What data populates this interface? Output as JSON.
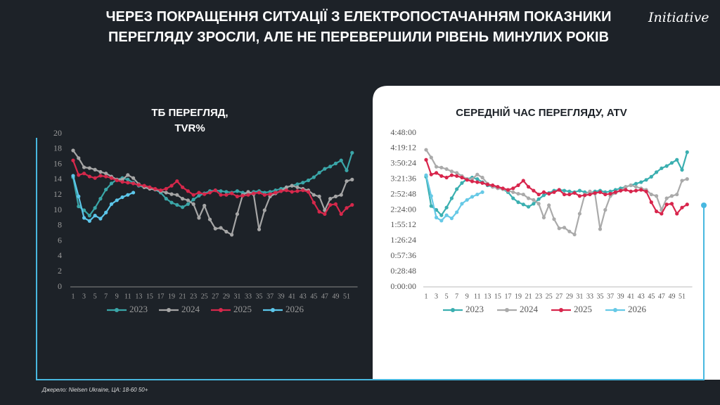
{
  "slide": {
    "title": "ЧЕРЕЗ ПОКРАЩЕННЯ СИТУАЦІЇ З ЕЛЕКТРОПОСТАЧАННЯМ ПОКАЗНИКИ ПЕРЕГЛЯДУ ЗРОСЛИ, АЛЕ НЕ ПЕРЕВЕРШИЛИ РІВЕНЬ МИНУЛИХ РОКІВ",
    "logo": "Initiative",
    "source": "Джерело: Nielsen Ukraine, ЦА: 18-60 50+"
  },
  "chart_data": [
    {
      "type": "line",
      "title": "ТБ ПЕРЕГЛЯД, TVR%",
      "categories": [
        1,
        null,
        3,
        null,
        5,
        null,
        7,
        null,
        9,
        null,
        11,
        null,
        13,
        null,
        15,
        null,
        17,
        null,
        19,
        null,
        21,
        null,
        23,
        null,
        25,
        null,
        27,
        null,
        29,
        null,
        31,
        null,
        33,
        null,
        35,
        null,
        37,
        null,
        39,
        null,
        41,
        null,
        43,
        null,
        45,
        null,
        47,
        null,
        49,
        null,
        51,
        null
      ],
      "ylim": [
        0,
        20
      ],
      "yticks": [
        0,
        2,
        4,
        6,
        8,
        10,
        12,
        14,
        16,
        18,
        20
      ],
      "series": [
        {
          "name": "2023",
          "color": "#3aa6a8",
          "values": [
            14.3,
            10.5,
            10,
            9.3,
            10.3,
            11.5,
            12.7,
            13.5,
            14.0,
            14.2,
            14.0,
            13.6,
            13.2,
            13.0,
            13.0,
            12.7,
            12.3,
            11.5,
            11.0,
            10.7,
            10.4,
            10.8,
            11.4,
            11.9,
            12.2,
            12.5,
            12.6,
            12.5,
            12.4,
            12.3,
            12.5,
            12.3,
            12.2,
            12.4,
            12.5,
            12.3,
            12.4,
            12.6,
            12.8,
            13.0,
            13.2,
            13.4,
            13.6,
            13.9,
            14.3,
            14.9,
            15.4,
            15.7,
            16.1,
            16.5,
            15.2,
            17.5
          ]
        },
        {
          "name": "2024",
          "color": "#a6a6a6",
          "values": [
            17.8,
            16.8,
            15.6,
            15.5,
            15.3,
            15.0,
            14.8,
            14.4,
            14.0,
            14.0,
            14.6,
            14.2,
            13.4,
            13.0,
            12.8,
            12.7,
            12.5,
            12.3,
            12.1,
            12.0,
            11.5,
            11.3,
            10.8,
            9.0,
            10.6,
            8.8,
            7.6,
            7.7,
            7.2,
            6.8,
            9.5,
            12.0,
            12.4,
            12.1,
            7.5,
            10.0,
            11.8,
            12.2,
            12.5,
            13.0,
            13.2,
            13.0,
            12.8,
            12.6,
            12.0,
            11.8,
            10.0,
            11.5,
            11.8,
            12.0,
            13.8,
            14.0
          ]
        },
        {
          "name": "2025",
          "color": "#d6284b",
          "values": [
            16.5,
            14.6,
            14.8,
            14.4,
            14.2,
            14.5,
            14.4,
            14.2,
            13.9,
            13.7,
            13.6,
            13.5,
            13.3,
            13.2,
            13.0,
            12.8,
            12.6,
            12.8,
            13.2,
            13.8,
            13.0,
            12.5,
            12.0,
            12.3,
            12.1,
            12.3,
            12.6,
            12.0,
            12.0,
            12.2,
            11.8,
            11.9,
            12.0,
            12.2,
            12.3,
            12.0,
            12.1,
            12.3,
            12.5,
            12.6,
            12.4,
            12.5,
            12.6,
            12.4,
            11.0,
            9.8,
            9.5,
            10.7,
            10.8,
            9.5,
            10.3,
            10.7
          ]
        },
        {
          "name": "2026",
          "color": "#5cc6ea",
          "values": [
            14.5,
            11.8,
            9.0,
            8.6,
            9.3,
            8.9,
            9.7,
            10.8,
            11.3,
            11.7,
            12.0,
            12.3,
            null,
            null,
            null,
            null,
            null,
            null,
            null,
            null,
            null,
            null,
            null,
            null,
            null,
            null,
            null,
            null,
            null,
            null,
            null,
            null,
            null,
            null,
            null,
            null,
            null,
            null,
            null,
            null,
            null,
            null,
            null,
            null,
            null,
            null,
            null,
            null,
            null,
            null,
            null,
            null
          ]
        }
      ]
    },
    {
      "type": "line",
      "title": "СЕРЕДНІЙ ЧАС ПЕРЕГЛЯДУ, ATV",
      "categories": [
        1,
        null,
        3,
        null,
        5,
        null,
        7,
        null,
        9,
        null,
        11,
        null,
        13,
        null,
        15,
        null,
        17,
        null,
        19,
        null,
        21,
        null,
        23,
        null,
        25,
        null,
        27,
        null,
        29,
        null,
        31,
        null,
        33,
        null,
        35,
        null,
        37,
        null,
        39,
        null,
        41,
        null,
        43,
        null,
        45,
        null,
        47,
        null,
        49,
        null,
        51,
        null
      ],
      "ylim": [
        0,
        17280
      ],
      "yticks": [
        {
          "value": 0,
          "label": "0:00:00"
        },
        {
          "value": 1728,
          "label": "0:28:48"
        },
        {
          "value": 3456,
          "label": "0:57:36"
        },
        {
          "value": 5184,
          "label": "1:26:24"
        },
        {
          "value": 6912,
          "label": "1:55:12"
        },
        {
          "value": 8640,
          "label": "2:24:00"
        },
        {
          "value": 10368,
          "label": "2:52:48"
        },
        {
          "value": 12096,
          "label": "3:21:36"
        },
        {
          "value": 13824,
          "label": "3:50:24"
        },
        {
          "value": 15552,
          "label": "4:19:12"
        },
        {
          "value": 17280,
          "label": "4:48:00"
        }
      ],
      "series": [
        {
          "name": "2023",
          "color": "#3aafb0",
          "values": [
            12360,
            9070,
            8640,
            8040,
            8900,
            9940,
            10970,
            11660,
            12100,
            12270,
            12100,
            11750,
            11400,
            11230,
            11230,
            10970,
            10630,
            9940,
            9500,
            9250,
            8990,
            9330,
            9850,
            10280,
            10540,
            10800,
            10890,
            10800,
            10710,
            10630,
            10800,
            10630,
            10540,
            10710,
            10800,
            10630,
            10710,
            10890,
            11060,
            11230,
            11400,
            11580,
            11750,
            12010,
            12360,
            12870,
            13310,
            13560,
            13910,
            14260,
            13130,
            15120
          ]
        },
        {
          "name": "2024",
          "color": "#aaaaaa",
          "values": [
            15380,
            14520,
            13480,
            13390,
            13220,
            12960,
            12790,
            12440,
            12100,
            12100,
            12610,
            12270,
            11580,
            11230,
            11060,
            10970,
            10800,
            10630,
            10450,
            10370,
            9940,
            9760,
            9330,
            7780,
            9160,
            7600,
            6570,
            6650,
            6220,
            5880,
            8210,
            10370,
            10710,
            10450,
            6480,
            8640,
            10200,
            10540,
            10800,
            11230,
            11400,
            11230,
            11060,
            10890,
            10370,
            10200,
            8640,
            9940,
            10200,
            10370,
            11920,
            12100
          ]
        },
        {
          "name": "2025",
          "color": "#d8254c",
          "values": [
            14260,
            12610,
            12790,
            12440,
            12270,
            12530,
            12440,
            12270,
            12010,
            11840,
            11750,
            11660,
            11490,
            11400,
            11230,
            11060,
            10890,
            11060,
            11400,
            11920,
            11230,
            10800,
            10370,
            10630,
            10450,
            10630,
            10890,
            10370,
            10370,
            10540,
            10200,
            10280,
            10370,
            10540,
            10630,
            10370,
            10450,
            10630,
            10800,
            10890,
            10710,
            10800,
            10890,
            10710,
            9500,
            8470,
            8210,
            9250,
            9330,
            8210,
            8900,
            9250
          ]
        },
        {
          "name": "2026",
          "color": "#66c9e6",
          "values": [
            12530,
            10200,
            7780,
            7430,
            8040,
            7690,
            8380,
            9330,
            9760,
            10110,
            10370,
            10630,
            null,
            null,
            null,
            null,
            null,
            null,
            null,
            null,
            null,
            null,
            null,
            null,
            null,
            null,
            null,
            null,
            null,
            null,
            null,
            null,
            null,
            null,
            null,
            null,
            null,
            null,
            null,
            null,
            null,
            null,
            null,
            null,
            null,
            null,
            null,
            null,
            null,
            null,
            null,
            null
          ]
        }
      ]
    }
  ]
}
